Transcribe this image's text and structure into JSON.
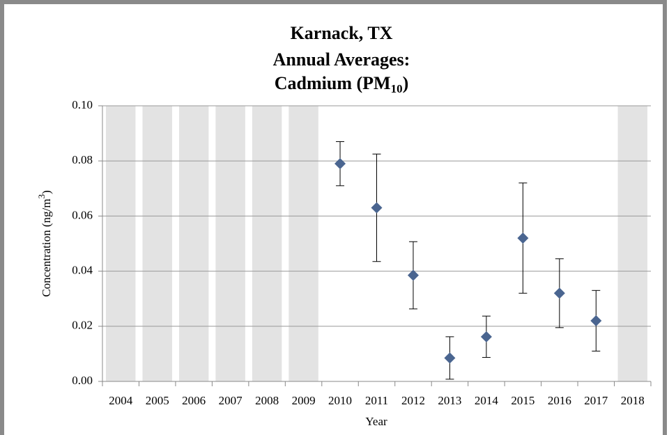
{
  "chart_data": {
    "type": "scatter",
    "title": [
      "Karnack, TX",
      "Annual Averages:",
      {
        "text": "Cadmium (PM",
        "sub": "10",
        "after": ")"
      }
    ],
    "xlabel": "Year",
    "ylabel": {
      "text": "Concentration (ng/m",
      "sup": "3",
      "after": ")"
    },
    "categories": [
      "2004",
      "2005",
      "2006",
      "2007",
      "2008",
      "2009",
      "2010",
      "2011",
      "2012",
      "2013",
      "2014",
      "2015",
      "2016",
      "2017",
      "2018"
    ],
    "values": [
      null,
      null,
      null,
      null,
      null,
      null,
      0.079,
      0.063,
      0.0385,
      0.0085,
      0.0162,
      0.052,
      0.032,
      0.022,
      null
    ],
    "errors": [
      null,
      null,
      null,
      null,
      null,
      null,
      0.008,
      0.0195,
      0.0122,
      0.0077,
      0.0075,
      0.02,
      0.0125,
      0.011,
      null
    ],
    "color": "#4a6590",
    "shade_missing": true,
    "shade_color": "#e3e3e3",
    "ylim": [
      0,
      0.1
    ],
    "yticks": [
      {
        "value": 0,
        "label": "0.00"
      },
      {
        "value": 0.02,
        "label": "0.02"
      },
      {
        "value": 0.04,
        "label": "0.04"
      },
      {
        "value": 0.06,
        "label": "0.06"
      },
      {
        "value": 0.08,
        "label": "0.08"
      },
      {
        "value": 0.1,
        "label": "0.10"
      }
    ],
    "grid": true
  }
}
